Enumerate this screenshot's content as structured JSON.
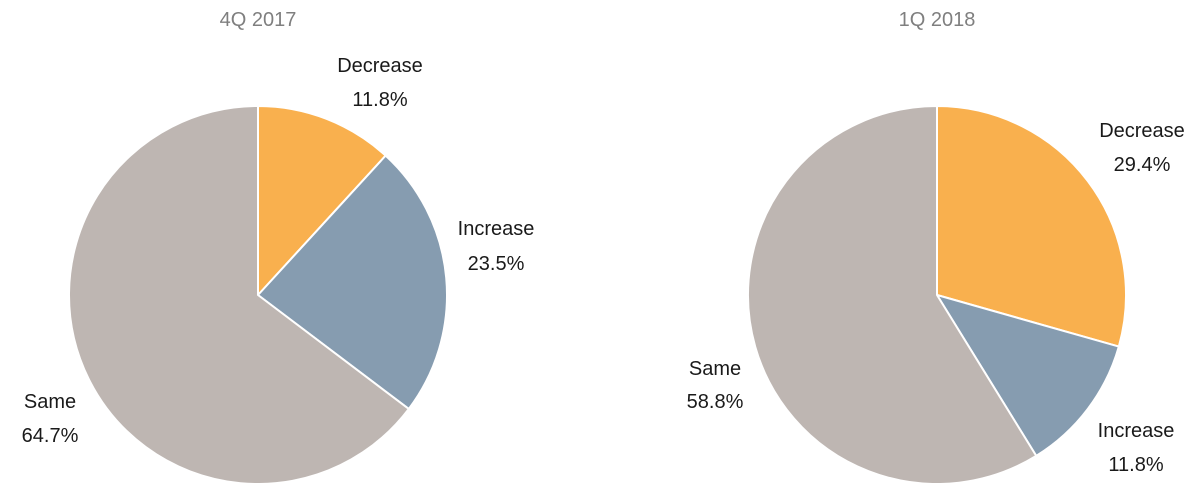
{
  "chart_data": [
    {
      "type": "pie",
      "title": "4Q 2017",
      "categories": [
        "Decrease",
        "Increase",
        "Same"
      ],
      "values": [
        11.8,
        23.5,
        64.7
      ],
      "value_labels": [
        "11.8%",
        "23.5%",
        "64.7%"
      ],
      "colors": [
        "#f9b04e",
        "#869cb0",
        "#beb6b2"
      ],
      "start_angle": "12 o'clock",
      "direction": "clockwise",
      "legend": "none"
    },
    {
      "type": "pie",
      "title": "1Q 2018",
      "categories": [
        "Decrease",
        "Increase",
        "Same"
      ],
      "values": [
        29.4,
        11.8,
        58.8
      ],
      "value_labels": [
        "29.4%",
        "11.8%",
        "58.8%"
      ],
      "colors": [
        "#f9b04e",
        "#869cb0",
        "#beb6b2"
      ],
      "start_angle": "12 o'clock",
      "direction": "clockwise",
      "legend": "none"
    }
  ]
}
